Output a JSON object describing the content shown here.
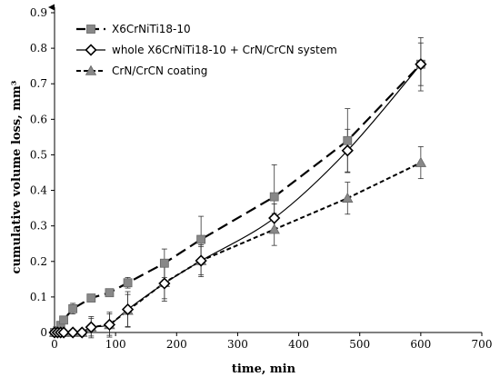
{
  "chart_data": {
    "type": "line",
    "xlabel": "time, min",
    "ylabel": "cumulative volume loss, mm³",
    "xlim": [
      0,
      700
    ],
    "ylim": [
      0,
      0.9
    ],
    "xticks": [
      0,
      100,
      200,
      300,
      400,
      500,
      600,
      700
    ],
    "yticks": [
      0,
      0.1,
      0.2,
      0.3,
      0.4,
      0.5,
      0.6,
      0.7,
      0.8,
      0.9
    ],
    "ytick_labels": [
      "0",
      "0.1",
      "0.2",
      "0.3",
      "0.4",
      "0.5",
      "0.6",
      "0.7",
      "0.8",
      "0.9"
    ],
    "grid": false,
    "legend_position": "top-left",
    "series": [
      {
        "name": "X6CrNiTi18-10",
        "marker": "square",
        "line_style": "long-dash",
        "color": "#888888",
        "x": [
          0,
          5,
          10,
          15,
          30,
          60,
          90,
          120,
          180,
          240,
          360,
          480,
          600
        ],
        "y": [
          0.0,
          0.005,
          0.02,
          0.035,
          0.067,
          0.097,
          0.112,
          0.14,
          0.195,
          0.262,
          0.382,
          0.54,
          0.755
        ],
        "err": [
          0.0,
          0.005,
          0.008,
          0.01,
          0.015,
          0.01,
          0.01,
          0.015,
          0.04,
          0.065,
          0.09,
          0.09,
          0.075
        ]
      },
      {
        "name": "whole X6CrNiTi18-10 + CrN/CrCN system",
        "marker": "diamond",
        "line_style": "solid",
        "color": "#ffffff",
        "x": [
          0,
          5,
          10,
          15,
          30,
          45,
          60,
          90,
          120,
          180,
          240,
          360,
          480,
          600
        ],
        "y": [
          0.0,
          0.0,
          0.0,
          0.0,
          0.0,
          0.0,
          0.015,
          0.022,
          0.065,
          0.138,
          0.202,
          0.322,
          0.512,
          0.755
        ],
        "err": [
          0.0,
          0.0,
          0.0,
          0.0,
          0.0,
          0.0,
          0.03,
          0.035,
          0.05,
          0.05,
          0.04,
          0.04,
          0.06,
          0.06
        ]
      },
      {
        "name": "CrN/CrCN coating",
        "marker": "triangle",
        "line_style": "short-dash",
        "color": "#888888",
        "x": [
          0,
          5,
          10,
          15,
          30,
          45,
          60,
          90,
          120,
          180,
          240,
          360,
          480,
          600
        ],
        "y": [
          0.0,
          0.0,
          0.0,
          0.0,
          0.0,
          0.0,
          0.015,
          0.022,
          0.062,
          0.14,
          0.202,
          0.29,
          0.378,
          0.478
        ],
        "err": [
          0.0,
          0.0,
          0.0,
          0.0,
          0.0,
          0.0,
          0.025,
          0.03,
          0.045,
          0.045,
          0.045,
          0.045,
          0.045,
          0.045
        ]
      }
    ]
  }
}
